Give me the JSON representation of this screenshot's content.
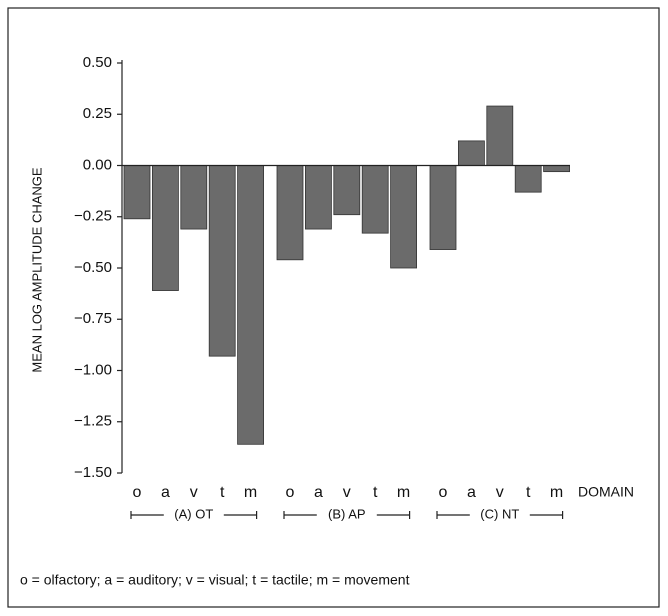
{
  "chart_data": {
    "type": "bar",
    "y_label": "MEAN LOG AMPLITUDE CHANGE",
    "x_label": "DOMAIN",
    "categories": [
      "o",
      "a",
      "v",
      "t",
      "m",
      "o",
      "a",
      "v",
      "t",
      "m",
      "o",
      "a",
      "v",
      "t",
      "m"
    ],
    "groups": [
      "(A) OT",
      "(B) AP",
      "(C) NT"
    ],
    "values": [
      -0.26,
      -0.61,
      -0.31,
      -0.93,
      -1.36,
      -0.46,
      -0.31,
      -0.24,
      -0.33,
      -0.5,
      -0.41,
      0.12,
      0.29,
      -0.13,
      -0.03
    ],
    "color": "#6b6b6b",
    "ylim": [
      -1.5,
      0.5
    ],
    "yticks": [
      {
        "value": 0.5,
        "label": "0.50"
      },
      {
        "value": 0.25,
        "label": "0.25"
      },
      {
        "value": 0,
        "label": "0.00"
      },
      {
        "value": -0.25,
        "label": "−0.25"
      },
      {
        "value": -0.5,
        "label": "−0.50"
      },
      {
        "value": -0.75,
        "label": "−0.75"
      },
      {
        "value": -1,
        "label": "−1.00"
      },
      {
        "value": -1.25,
        "label": "−1.25"
      },
      {
        "value": -1.5,
        "label": "−1.50"
      }
    ],
    "footnote": "o = olfactory; a = auditory; v = visual; t = tactile; m = movement"
  }
}
